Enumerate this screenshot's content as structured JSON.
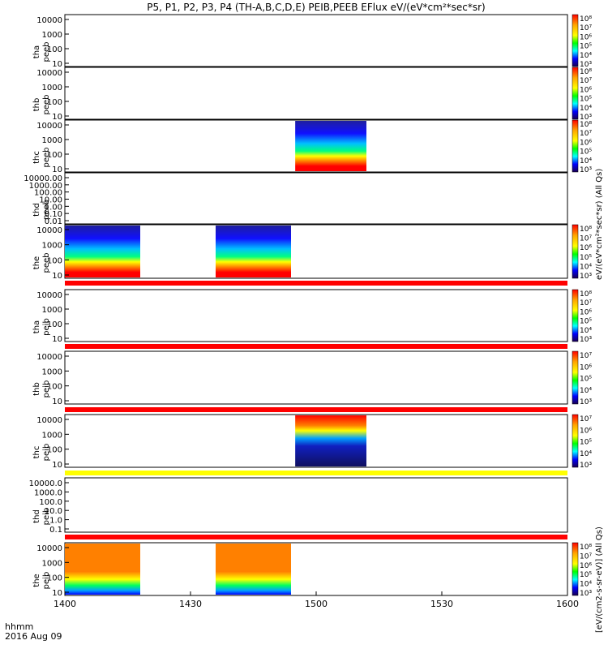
{
  "title": "P5, P1, P2, P3, P4 (TH-A,B,C,D,E) PEIB,PEEB EFlux eV/(eV*cm²*sec*sr)",
  "footer": {
    "line1": "hhmm",
    "line2": "2016 Aug 09"
  },
  "colorbar_units_upper": "eV/(eV*cm²*sec*sr) (All Qs)",
  "colorbar_units_lower": "[eV/(cm2-s-sr-eV)] (All Qs)",
  "colors": {
    "red_bar": "#ff0000",
    "yellow_bar": "#ffff00",
    "blank": "#ffffff"
  },
  "chart_data": {
    "type": "heatmap",
    "x_axis": {
      "label": "hhmm",
      "range": [
        "1400",
        "1600"
      ],
      "tick_labels": [
        "1400",
        "1430",
        "1500",
        "1530",
        "1600"
      ]
    },
    "panels": [
      {
        "name": "tha peeb",
        "y_ticks": [
          "10000",
          "1000",
          "100",
          "10"
        ],
        "colorbar_ticks": [
          "10⁸",
          "10⁷",
          "10⁶",
          "10⁵",
          "10⁴",
          "10³"
        ],
        "data_intervals": [],
        "flag_bar": null
      },
      {
        "name": "thb peeb",
        "y_ticks": [
          "10000",
          "1000",
          "100",
          "10"
        ],
        "colorbar_ticks": [
          "10⁸",
          "10⁷",
          "10⁶",
          "10⁵",
          "10⁴",
          "10³"
        ],
        "data_intervals": [],
        "flag_bar": null
      },
      {
        "name": "thc peeb",
        "y_ticks": [
          "10000",
          "1000",
          "100",
          "10"
        ],
        "colorbar_ticks": [
          "10⁸",
          "10⁷",
          "10⁶",
          "10⁵",
          "10⁴",
          "10³"
        ],
        "data_intervals": [
          [
            "1455",
            "1512"
          ]
        ],
        "flag_bar": null
      },
      {
        "name": "thd peeb",
        "y_ticks": [
          "10000.00",
          "1000.00",
          "100.00",
          "10.00",
          "1.00",
          "0.10",
          "0.01"
        ],
        "colorbar_ticks": [],
        "data_intervals": [],
        "flag_bar": null
      },
      {
        "name": "the peeb",
        "y_ticks": [
          "10000",
          "1000",
          "100",
          "10"
        ],
        "colorbar_ticks": [
          "10⁸",
          "10⁷",
          "10⁶",
          "10⁵",
          "10⁴",
          "10³"
        ],
        "data_intervals": [
          [
            "1400",
            "1418"
          ],
          [
            "1436",
            "1454"
          ]
        ],
        "flag_bar": "red"
      },
      {
        "name": "tha peib",
        "y_ticks": [
          "10000",
          "1000",
          "100",
          "10"
        ],
        "colorbar_ticks": [
          "10⁸",
          "10⁷",
          "10⁶",
          "10⁵",
          "10⁴",
          "10³"
        ],
        "data_intervals": [],
        "flag_bar": "red"
      },
      {
        "name": "thb peib",
        "y_ticks": [
          "10000",
          "1000",
          "100",
          "10"
        ],
        "colorbar_ticks": [
          "10⁷",
          "10⁶",
          "10⁵",
          "10⁴",
          "10³"
        ],
        "data_intervals": [],
        "flag_bar": "red"
      },
      {
        "name": "thc peib",
        "y_ticks": [
          "10000",
          "1000",
          "100",
          "10"
        ],
        "colorbar_ticks": [
          "10⁷",
          "10⁶",
          "10⁵",
          "10⁴",
          "10³"
        ],
        "data_intervals": [
          [
            "1455",
            "1512"
          ]
        ],
        "flag_bar": "yellow"
      },
      {
        "name": "thd peib",
        "y_ticks": [
          "10000.0",
          "1000.0",
          "100.0",
          "10.0",
          "1.0",
          "0.1"
        ],
        "colorbar_ticks": [],
        "data_intervals": [],
        "flag_bar": "red"
      },
      {
        "name": "the peib",
        "y_ticks": [
          "10000",
          "1000",
          "100",
          "10"
        ],
        "colorbar_ticks": [
          "10⁸",
          "10⁷",
          "10⁶",
          "10⁵",
          "10⁴",
          "10³"
        ],
        "data_intervals": [
          [
            "1400",
            "1418"
          ],
          [
            "1436",
            "1454"
          ]
        ],
        "flag_bar": null
      }
    ]
  }
}
